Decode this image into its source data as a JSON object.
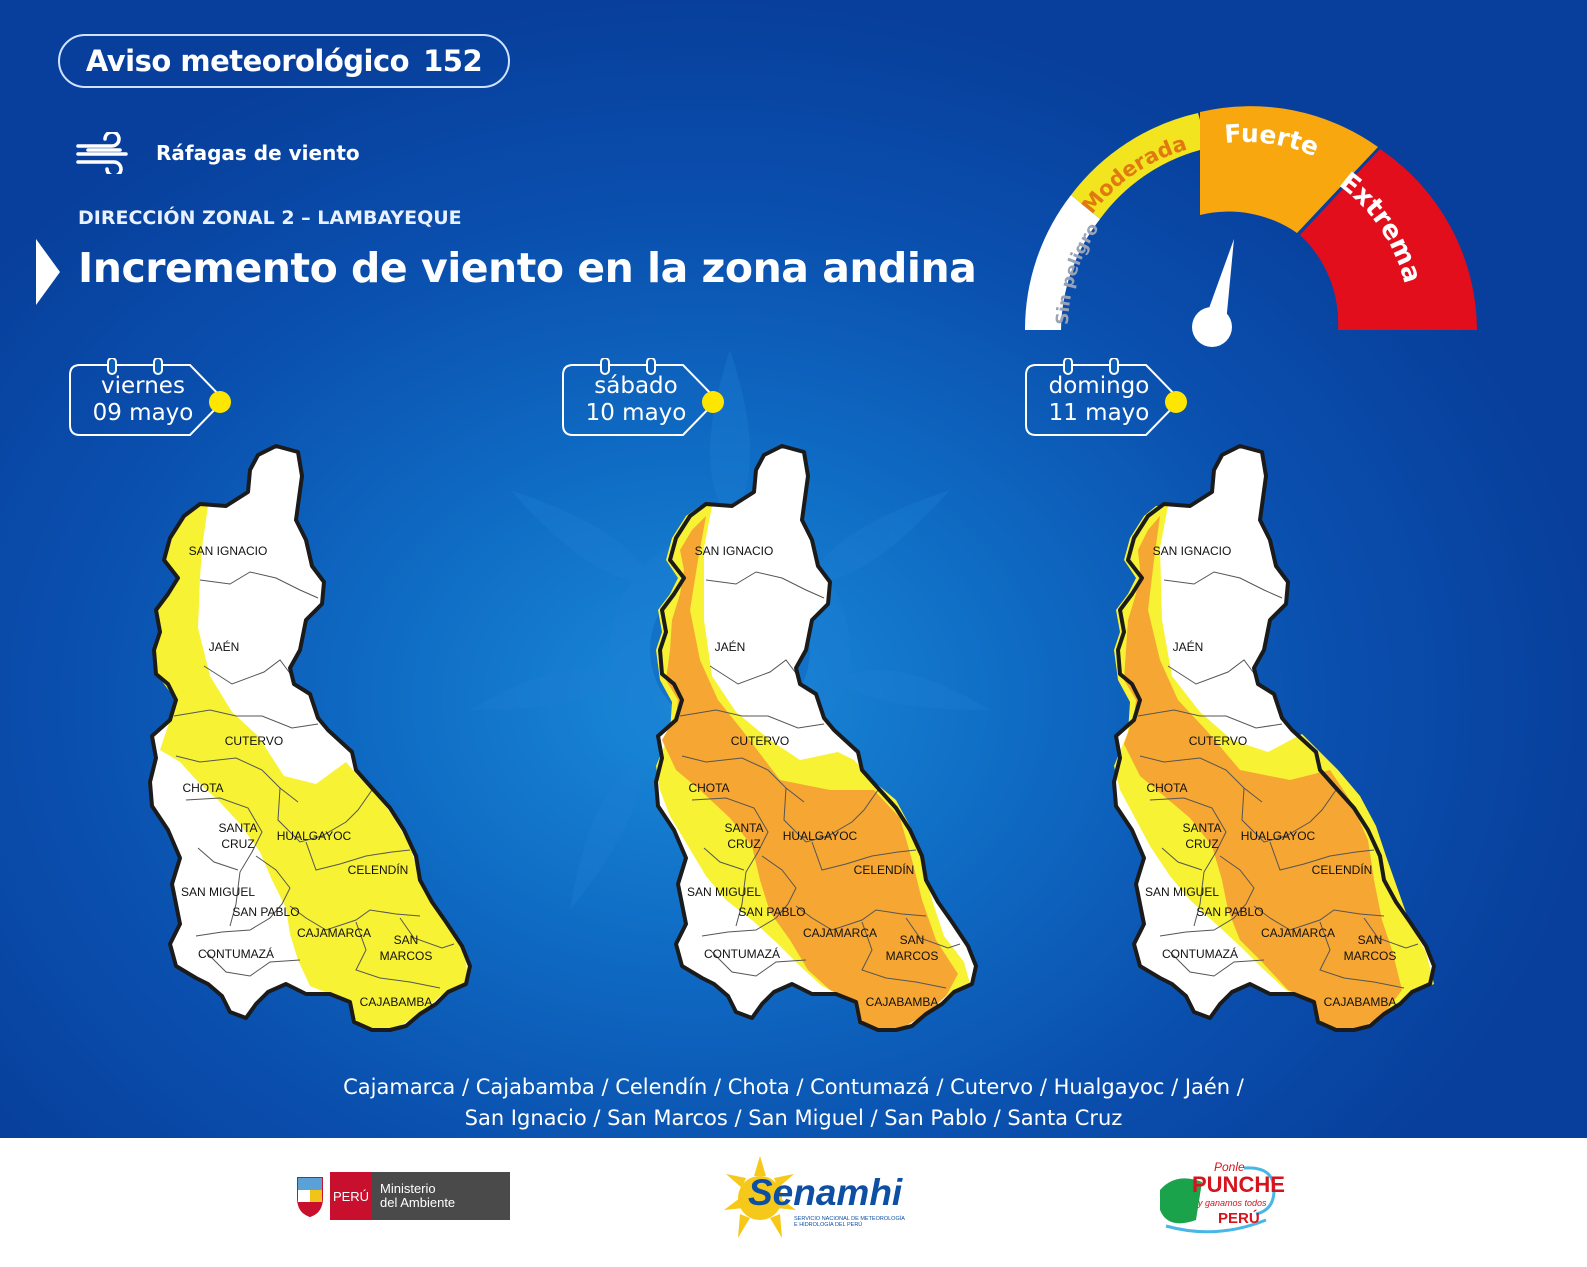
{
  "header": {
    "badge_label": "Aviso meteorológico",
    "badge_number": "152",
    "hazard": "Ráfagas de viento",
    "hazard_icon": "wind-icon",
    "zone": "DIRECCIÓN ZONAL 2 – LAMBAYEQUE",
    "headline": "Incremento de viento en la zona andina"
  },
  "gauge": {
    "levels": [
      {
        "label": "Sin peligro",
        "color": "#ffffff"
      },
      {
        "label": "Moderada",
        "color": "#f2e41f"
      },
      {
        "label": "Fuerte",
        "color": "#f8a70e"
      },
      {
        "label": "Extrema",
        "color": "#e30e1c"
      }
    ],
    "current_level": "Fuerte"
  },
  "days": [
    {
      "weekday": "viernes",
      "date": "09 mayo"
    },
    {
      "weekday": "sábado",
      "date": "10 mayo"
    },
    {
      "weekday": "domingo",
      "date": "11 mayo"
    }
  ],
  "map": {
    "provinces": [
      "SAN IGNACIO",
      "JAÉN",
      "CUTERVO",
      "CHOTA",
      "SANTA",
      "CRUZ",
      "HUALGAYOC",
      "CELENDÍN",
      "SAN MIGUEL",
      "SAN PABLO",
      "CAJAMARCA",
      "SAN",
      "MARCOS",
      "CONTUMAZÁ",
      "CAJABAMBA"
    ],
    "colors": {
      "none": "#ffffff",
      "moderate": "#f7f233",
      "strong": "#f6a632"
    }
  },
  "districts": {
    "line1": "Cajamarca / Cajabamba / Celendín / Chota / Contumazá / Cutervo / Hualgayoc / Jaén /",
    "line2": "San Ignacio / San Marcos / San Miguel / San Pablo / Santa Cruz"
  },
  "footer": {
    "peru": "PERÚ",
    "ministry_line1": "Ministerio",
    "ministry_line2": "del Ambiente",
    "senamhi": "Senamhi",
    "senamhi_sub1": "SERVICIO NACIONAL DE METEOROLOGÍA",
    "senamhi_sub2": "E HIDROLOGÍA DEL PERÚ",
    "campaign": [
      "Ponle",
      "PUNCHE",
      "y ganamos todos",
      "PERÚ"
    ]
  }
}
